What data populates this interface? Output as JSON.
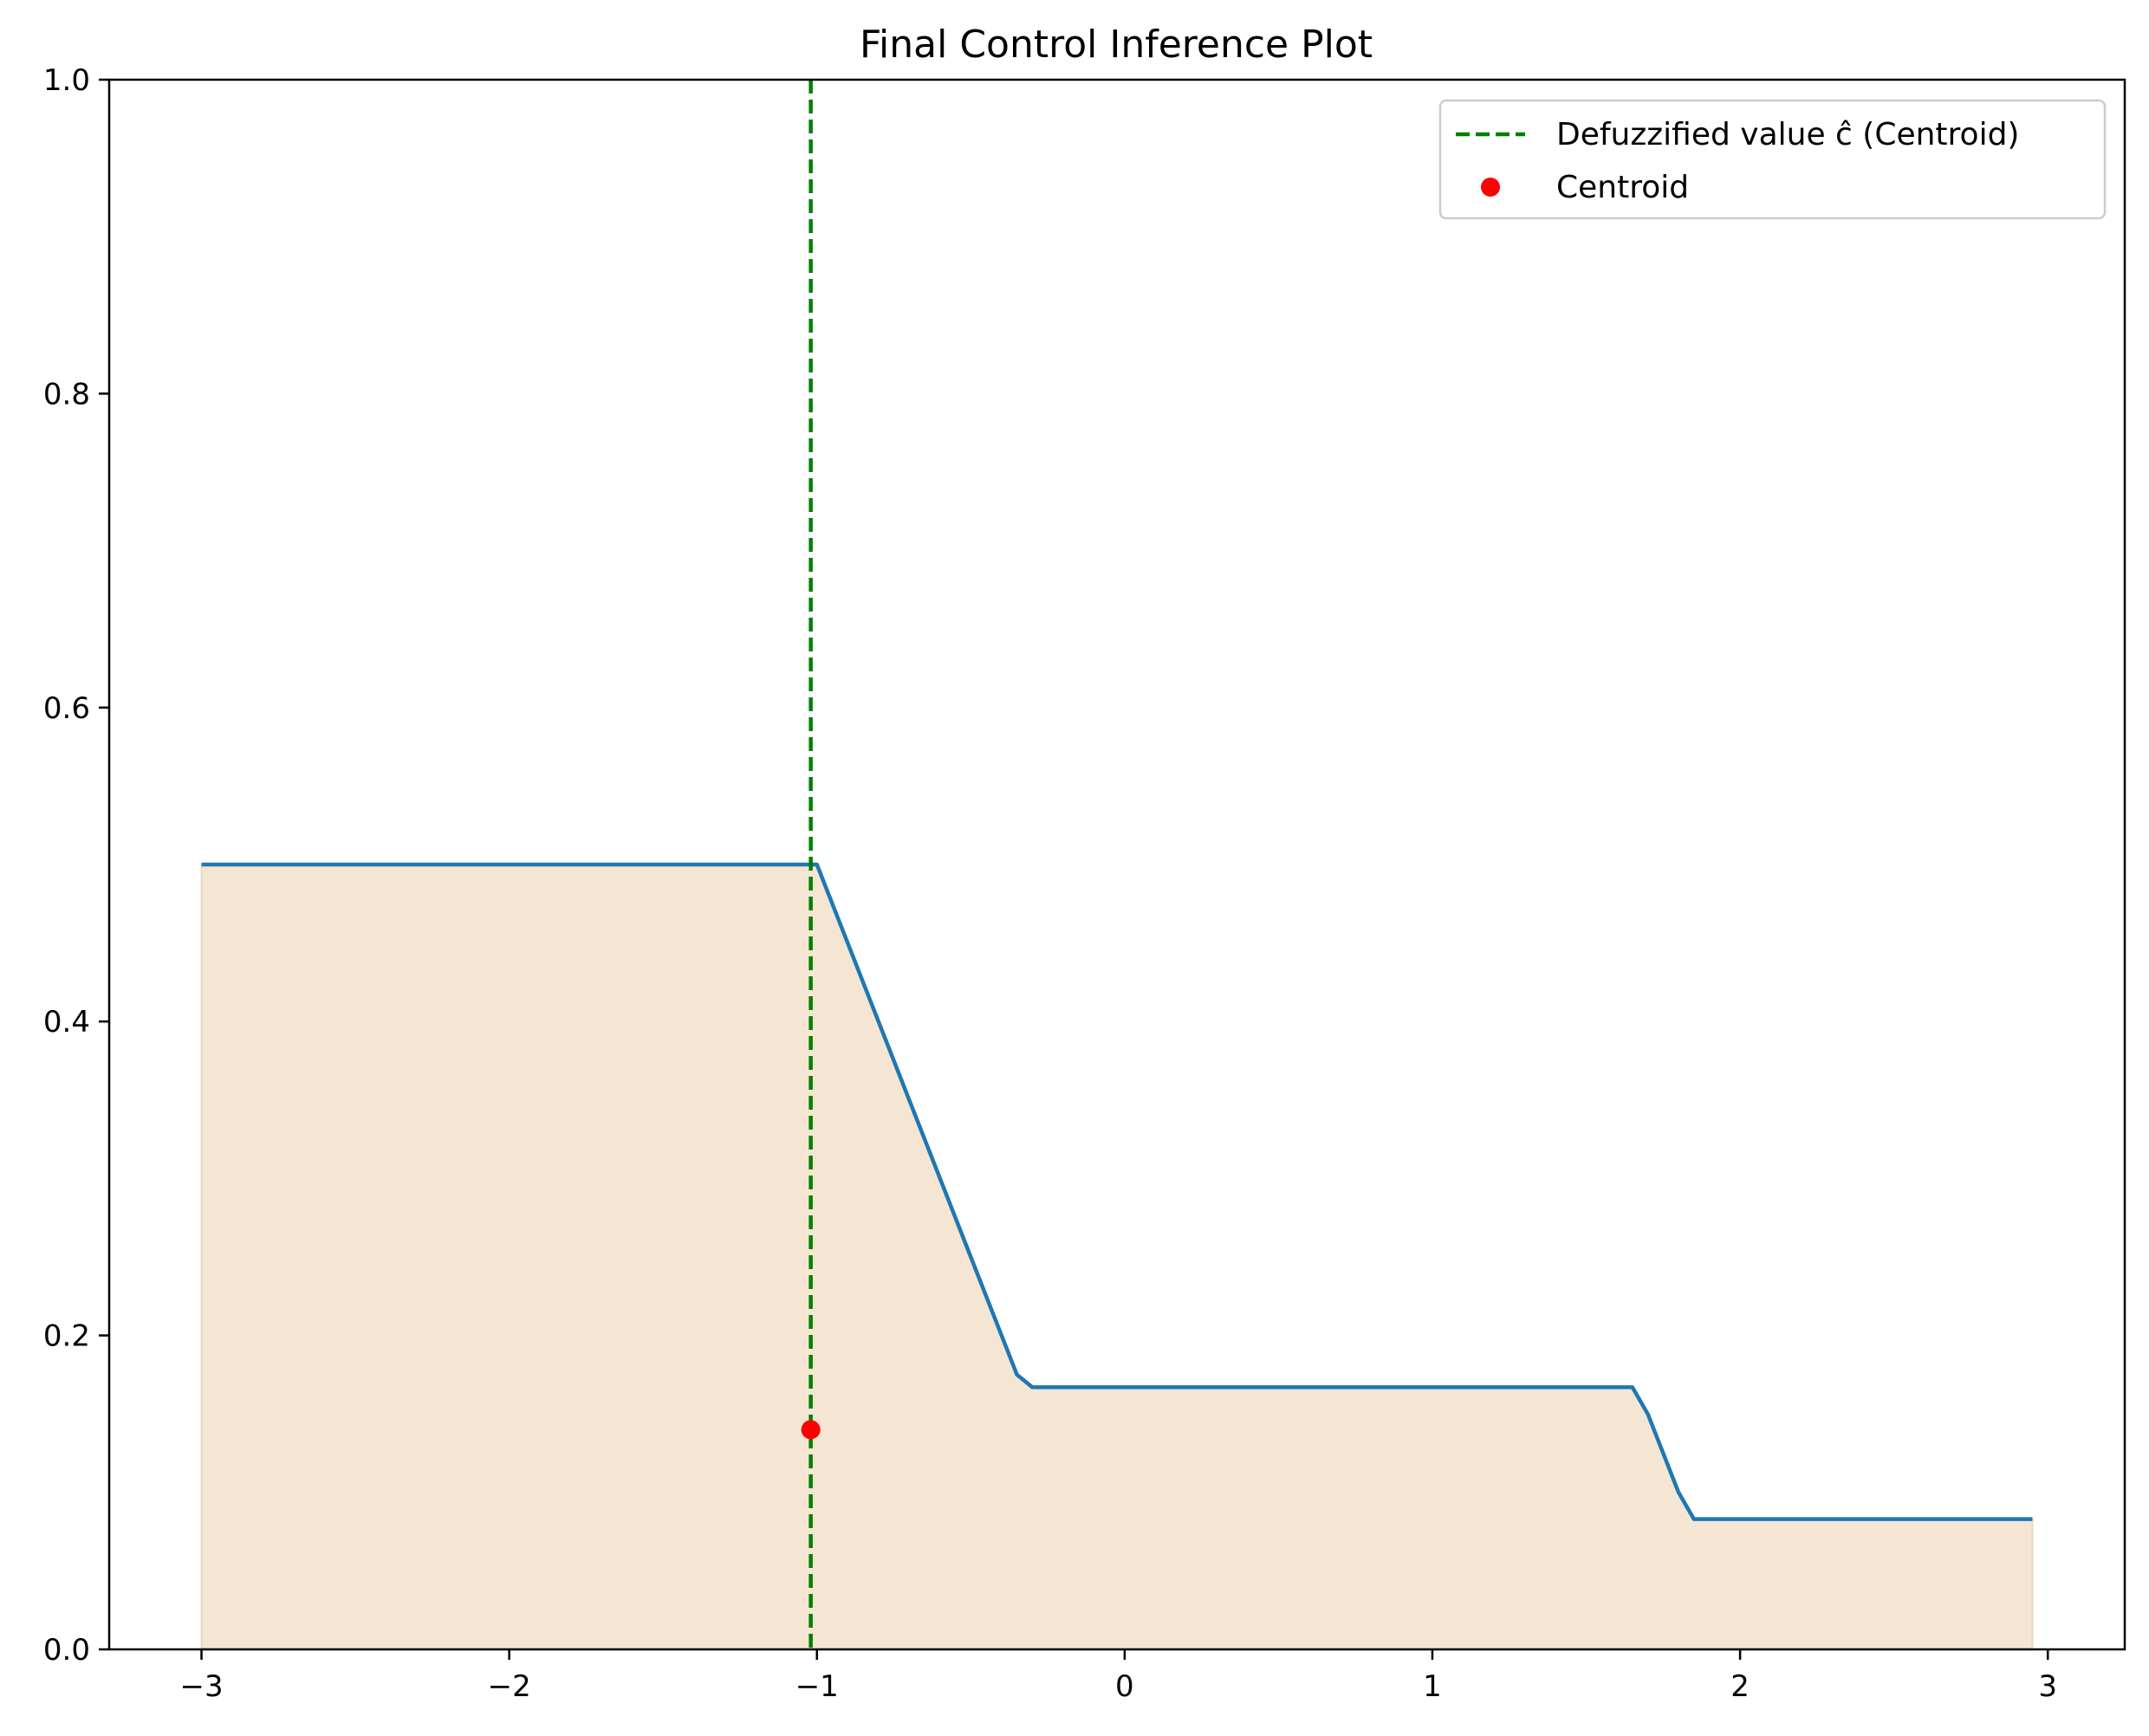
{
  "chart_data": {
    "type": "line",
    "title": "Final Control Inference Plot",
    "xlabel": "",
    "ylabel": "",
    "xlim": [
      -3.3,
      3.25
    ],
    "ylim": [
      0.0,
      1.0
    ],
    "x_ticks": [
      -3,
      -2,
      -1,
      0,
      1,
      2,
      3
    ],
    "x_tick_labels": [
      "−3",
      "−2",
      "−1",
      "0",
      "1",
      "2",
      "3"
    ],
    "y_ticks": [
      0.0,
      0.2,
      0.4,
      0.6,
      0.8,
      1.0
    ],
    "y_tick_labels": [
      "0.0",
      "0.2",
      "0.4",
      "0.6",
      "0.8",
      "1.0"
    ],
    "grid": false,
    "legend_position": "top-right",
    "series": [
      {
        "kind": "line",
        "color": "#1f77b4",
        "x": [
          -3.0,
          -1.0,
          -0.35,
          -0.3,
          1.65,
          1.7,
          1.8,
          1.85,
          2.95
        ],
        "y": [
          0.5,
          0.5,
          0.175,
          0.167,
          0.167,
          0.15,
          0.1,
          0.083,
          0.083
        ]
      }
    ],
    "fill": {
      "color": "#f5e6d3",
      "edge_color": "#ecd9bd",
      "baseline": 0.0
    },
    "vline": {
      "x": -1.02,
      "color": "#008000",
      "style": "dashed",
      "label": "Defuzzified value ĉ (Centroid)"
    },
    "centroid": {
      "x": -1.02,
      "y": 0.14,
      "color": "#ff0000",
      "label": "Centroid"
    }
  }
}
